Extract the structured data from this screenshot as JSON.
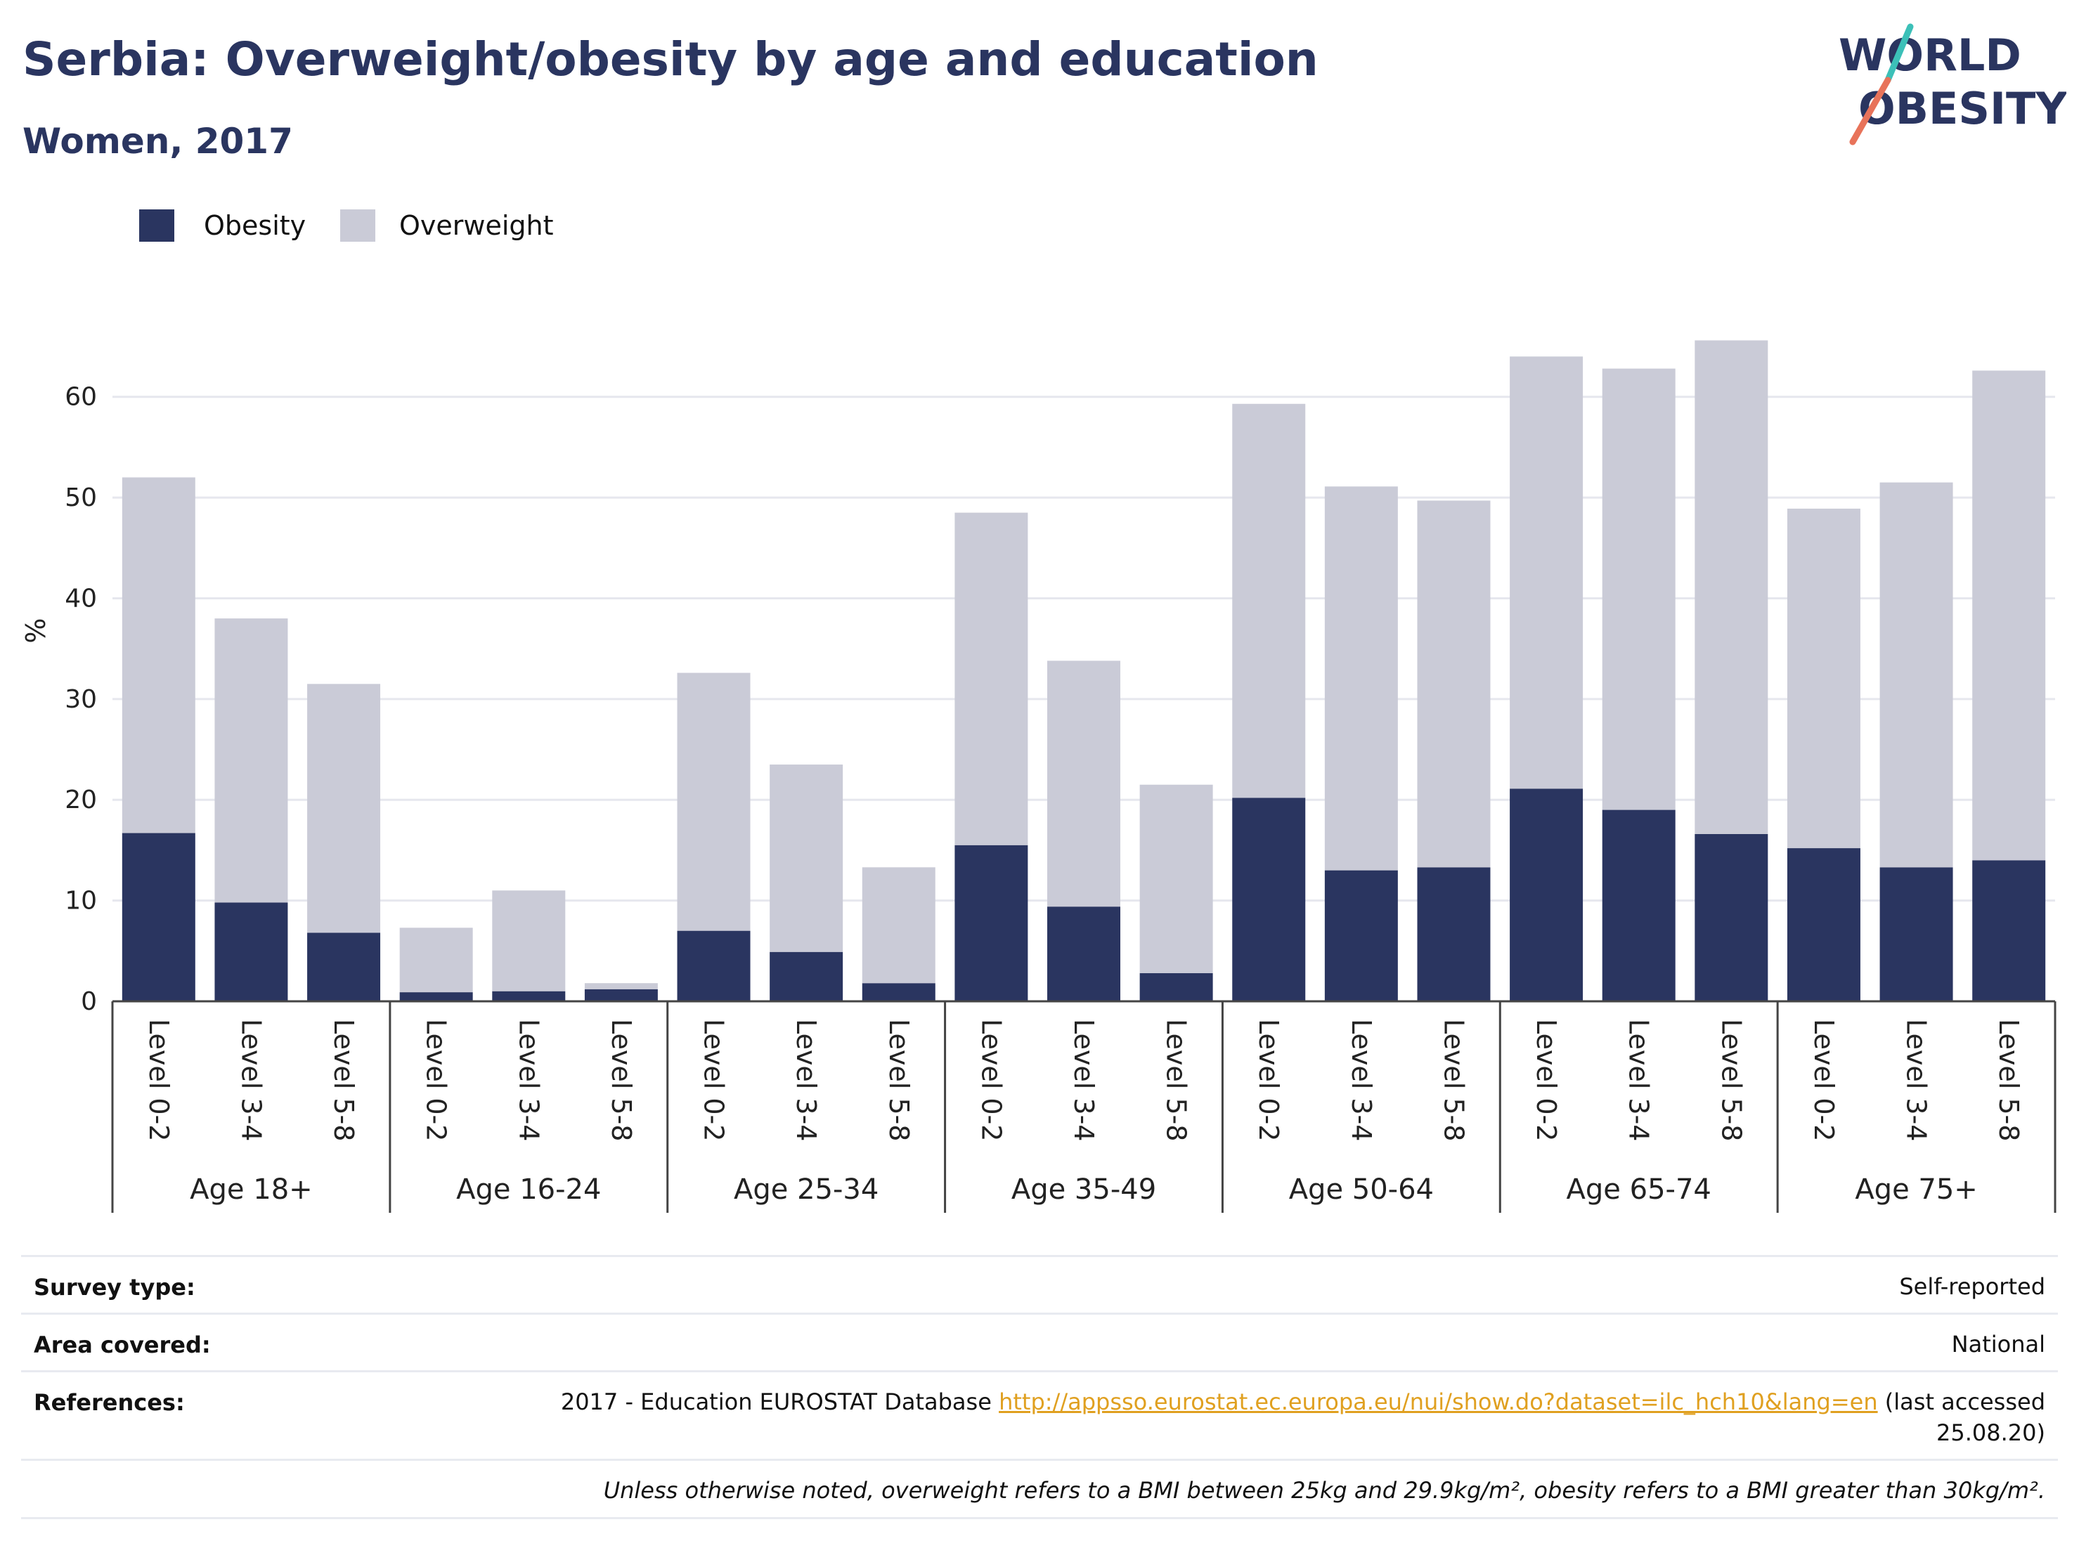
{
  "header": {
    "title": "Serbia: Overweight/obesity by age and education",
    "subtitle": "Women, 2017"
  },
  "logo": {
    "line1": "WORLD",
    "line2": "OBESITY",
    "colors": {
      "text": "#2a3560",
      "slash_teal": "#3cc0b8",
      "slash_coral": "#e8735a"
    }
  },
  "colors": {
    "obesity": "#2a3560",
    "overweight": "#cacbd7",
    "grid": "#e6e7ee",
    "axis": "#444444"
  },
  "chart_data": {
    "type": "bar",
    "stacked": true,
    "ylabel": "%",
    "ylim": [
      0,
      68
    ],
    "yticks": [
      0,
      10,
      20,
      30,
      40,
      50,
      60
    ],
    "grid": true,
    "legend_placement": "top-left",
    "categories": [
      {
        "group": "Age 18+",
        "level": "Level 0-2"
      },
      {
        "group": "Age 18+",
        "level": "Level 3-4"
      },
      {
        "group": "Age 18+",
        "level": "Level 5-8"
      },
      {
        "group": "Age 16-24",
        "level": "Level 0-2"
      },
      {
        "group": "Age 16-24",
        "level": "Level 3-4"
      },
      {
        "group": "Age 16-24",
        "level": "Level 5-8"
      },
      {
        "group": "Age 25-34",
        "level": "Level 0-2"
      },
      {
        "group": "Age 25-34",
        "level": "Level 3-4"
      },
      {
        "group": "Age 25-34",
        "level": "Level 5-8"
      },
      {
        "group": "Age 35-49",
        "level": "Level 0-2"
      },
      {
        "group": "Age 35-49",
        "level": "Level 3-4"
      },
      {
        "group": "Age 35-49",
        "level": "Level 5-8"
      },
      {
        "group": "Age 50-64",
        "level": "Level 0-2"
      },
      {
        "group": "Age 50-64",
        "level": "Level 3-4"
      },
      {
        "group": "Age 50-64",
        "level": "Level 5-8"
      },
      {
        "group": "Age 65-74",
        "level": "Level 0-2"
      },
      {
        "group": "Age 65-74",
        "level": "Level 3-4"
      },
      {
        "group": "Age 65-74",
        "level": "Level 5-8"
      },
      {
        "group": "Age 75+",
        "level": "Level 0-2"
      },
      {
        "group": "Age 75+",
        "level": "Level 3-4"
      },
      {
        "group": "Age 75+",
        "level": "Level 5-8"
      }
    ],
    "groups": [
      "Age 18+",
      "Age 16-24",
      "Age 25-34",
      "Age 35-49",
      "Age 50-64",
      "Age 65-74",
      "Age 75+"
    ],
    "series": [
      {
        "name": "Obesity",
        "values": [
          16.7,
          9.8,
          6.8,
          0.9,
          1.0,
          1.2,
          7.0,
          4.9,
          1.8,
          15.5,
          9.4,
          2.8,
          20.2,
          13.0,
          13.3,
          21.1,
          19.0,
          16.6,
          15.2,
          13.3,
          14.0
        ]
      },
      {
        "name": "Overweight",
        "values": [
          35.3,
          28.2,
          24.7,
          6.4,
          10.0,
          0.6,
          25.6,
          18.6,
          11.5,
          33.0,
          24.4,
          18.7,
          39.1,
          38.1,
          36.4,
          42.9,
          43.8,
          49.0,
          33.7,
          38.2,
          48.6
        ]
      }
    ]
  },
  "info": {
    "survey_type_label": "Survey type:",
    "survey_type_value": "Self-reported",
    "area_label": "Area covered:",
    "area_value": "National",
    "references_label": "References:",
    "references_prefix": "2017 - Education EUROSTAT Database ",
    "references_link": "http://appsso.eurostat.ec.europa.eu/nui/show.do?dataset=ilc_hch10&lang=en",
    "references_suffix": " (last accessed",
    "references_date": "25.08.20)",
    "note": "Unless otherwise noted, overweight refers to a BMI between 25kg and 29.9kg/m², obesity refers to a BMI greater than 30kg/m²."
  }
}
